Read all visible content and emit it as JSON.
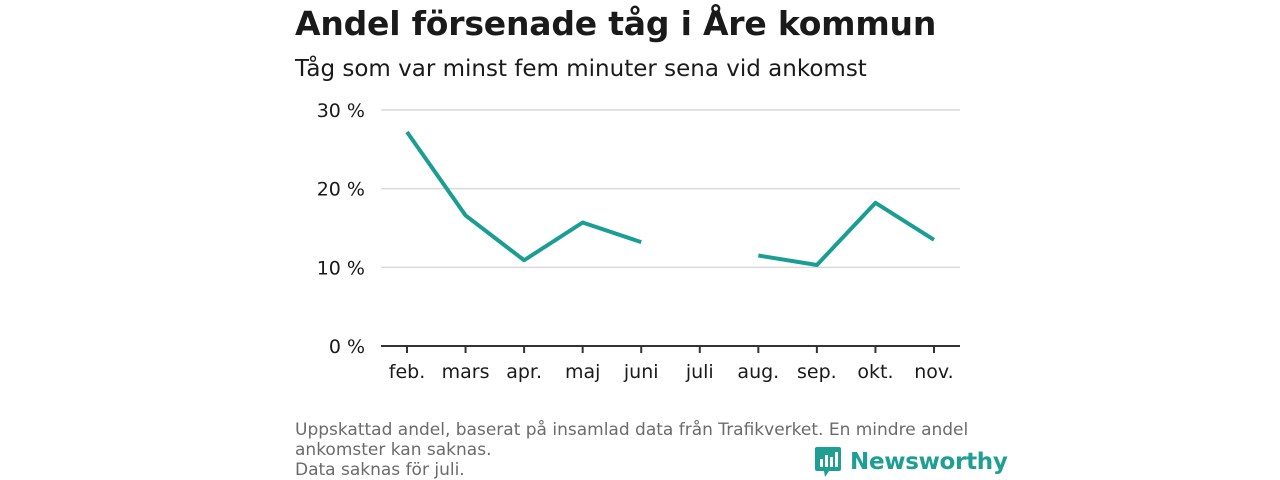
{
  "header": {
    "title": "Andel försenade tåg i Åre kommun",
    "subtitle": "Tåg som var minst fem minuter sena vid ankomst"
  },
  "chart_data": {
    "type": "line",
    "categories": [
      "feb.",
      "mars",
      "apr.",
      "maj",
      "juni",
      "juli",
      "aug.",
      "sep.",
      "okt.",
      "nov."
    ],
    "series": [
      {
        "values": [
          27.2,
          16.6,
          10.9,
          15.7,
          13.2,
          null,
          11.5,
          10.3,
          18.2,
          13.5
        ]
      }
    ],
    "ylim": [
      0,
      30
    ],
    "yticks": [
      0,
      10,
      20,
      30
    ],
    "ytick_labels": [
      "0 %",
      "10 %",
      "20 %",
      "30 %"
    ],
    "grid": true,
    "colors": {
      "line": "#1a9e94",
      "grid": "#d9d9d9",
      "axis": "#333333"
    }
  },
  "footnote": {
    "lines": [
      "Uppskattad andel, baserat på insamlad data från Trafikverket. En mindre andel",
      "ankomster kan saknas.",
      "Data saknas för juli."
    ]
  },
  "brand": {
    "name": "Newsworthy",
    "icon": "bar-chart-speech-bubble-icon",
    "color": "#1f9e93"
  }
}
